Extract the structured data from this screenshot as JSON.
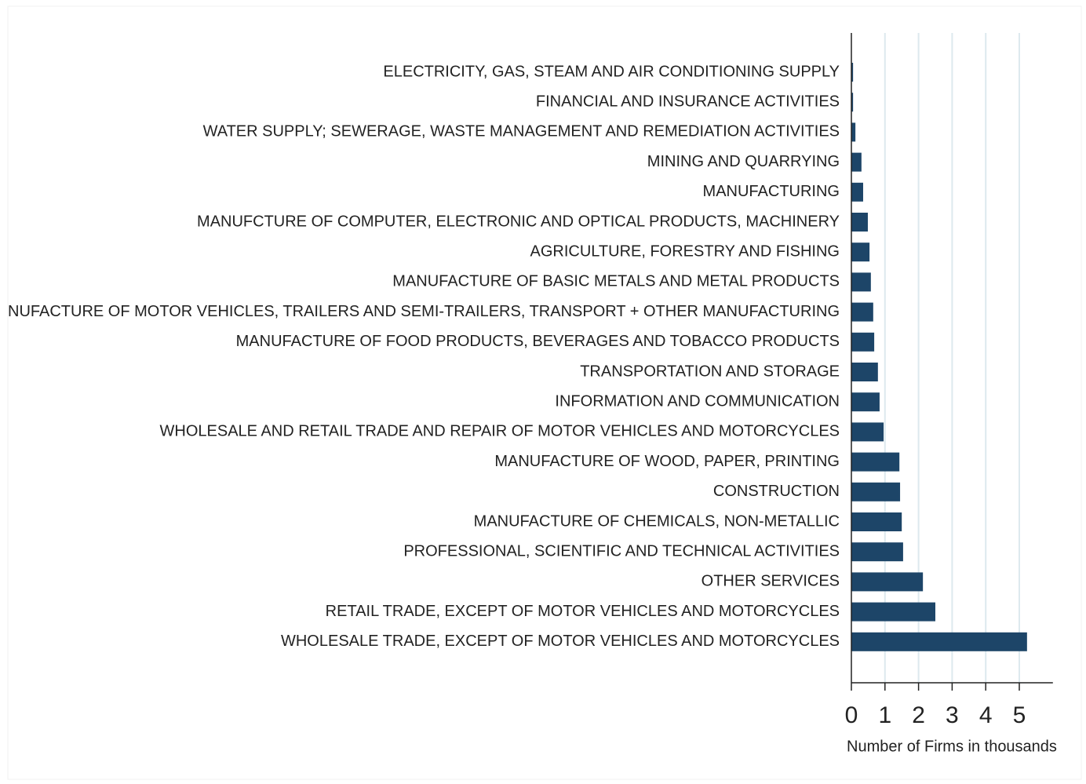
{
  "chart_data": {
    "type": "barh",
    "xlabel": "Number of Firms in thousands",
    "categories": [
      "ELECTRICITY, GAS, STEAM AND AIR CONDITIONING SUPPLY",
      "FINANCIAL AND INSURANCE ACTIVITIES",
      "WATER SUPPLY; SEWERAGE, WASTE MANAGEMENT AND REMEDIATION ACTIVITIES",
      "MINING AND QUARRYING",
      "MANUFACTURING",
      "MANUFCTURE OF COMPUTER, ELECTRONIC AND OPTICAL PRODUCTS, MACHINERY",
      "AGRICULTURE, FORESTRY AND FISHING",
      "MANUFACTURE OF BASIC METALS AND METAL PRODUCTS",
      "MANUFACTURE OF MOTOR VEHICLES, TRAILERS AND SEMI-TRAILERS, TRANSPORT + OTHER MANUFACTURING",
      "MANUFACTURE OF FOOD PRODUCTS, BEVERAGES AND TOBACCO PRODUCTS",
      "TRANSPORTATION AND STORAGE",
      "INFORMATION AND COMMUNICATION",
      "WHOLESALE AND RETAIL TRADE AND REPAIR OF MOTOR VEHICLES AND MOTORCYCLES",
      "MANUFACTURE OF WOOD, PAPER, PRINTING",
      "CONSTRUCTION",
      "MANUFACTURE OF CHEMICALS, NON-METALLIC",
      "PROFESSIONAL, SCIENTIFIC AND TECHNICAL ACTIVITIES",
      "OTHER SERVICES",
      "RETAIL TRADE, EXCEPT OF MOTOR VEHICLES AND MOTORCYCLES",
      "WHOLESALE TRADE, EXCEPT OF MOTOR VEHICLES AND MOTORCYCLES"
    ],
    "values": [
      0.05,
      0.05,
      0.12,
      0.3,
      0.35,
      0.49,
      0.54,
      0.58,
      0.65,
      0.68,
      0.79,
      0.84,
      0.96,
      1.43,
      1.45,
      1.5,
      1.54,
      2.13,
      2.5,
      5.23
    ],
    "color": "#1d4568",
    "xlim": [
      0,
      6
    ],
    "xticks": [
      0,
      1,
      2,
      3,
      4,
      5
    ],
    "grid": true
  }
}
